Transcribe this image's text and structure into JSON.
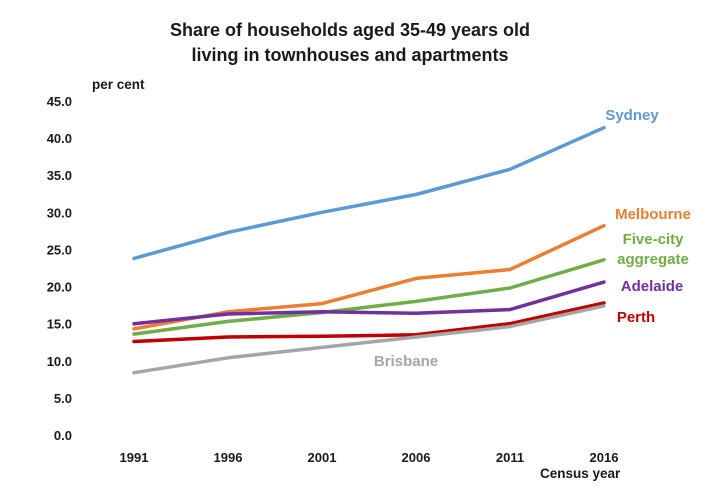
{
  "chart_data": {
    "type": "line",
    "title_lines": [
      "Share of households aged 35-49 years old",
      "living in townhouses and apartments"
    ],
    "ylabel": "per cent",
    "xlabel": "Census year",
    "categories": [
      "1991",
      "1996",
      "2001",
      "2006",
      "2011",
      "2016"
    ],
    "ylim": [
      0,
      45
    ],
    "yticks": [
      "0.0",
      "5.0",
      "10.0",
      "15.0",
      "20.0",
      "25.0",
      "30.0",
      "35.0",
      "40.0",
      "45.0"
    ],
    "grid": false,
    "legend": "direct labels at line ends",
    "series": [
      {
        "name": "Sydney",
        "label_lines": [
          "Sydney"
        ],
        "color": "#5b9bd5",
        "values": [
          23.8,
          27.3,
          30.0,
          32.4,
          35.8,
          41.4
        ]
      },
      {
        "name": "Melbourne",
        "label_lines": [
          "Melbourne"
        ],
        "color": "#ed7d31",
        "values": [
          14.3,
          16.6,
          17.7,
          21.1,
          22.3,
          28.2
        ]
      },
      {
        "name": "Five-city aggregate",
        "label_lines": [
          "Five-city",
          "aggregate"
        ],
        "color": "#70ad47",
        "values": [
          13.6,
          15.3,
          16.5,
          18.0,
          19.8,
          23.6
        ]
      },
      {
        "name": "Adelaide",
        "label_lines": [
          "Adelaide"
        ],
        "color": "#7030a0",
        "values": [
          15.0,
          16.3,
          16.6,
          16.4,
          16.9,
          20.6
        ]
      },
      {
        "name": "Perth",
        "label_lines": [
          "Perth"
        ],
        "color": "#c00000",
        "values": [
          12.6,
          13.2,
          13.3,
          13.5,
          15.0,
          17.8
        ]
      },
      {
        "name": "Brisbane",
        "label_lines": [
          "Brisbane"
        ],
        "color": "#a5a5a5",
        "values": [
          8.4,
          10.4,
          11.8,
          13.2,
          14.6,
          17.4
        ]
      }
    ]
  }
}
